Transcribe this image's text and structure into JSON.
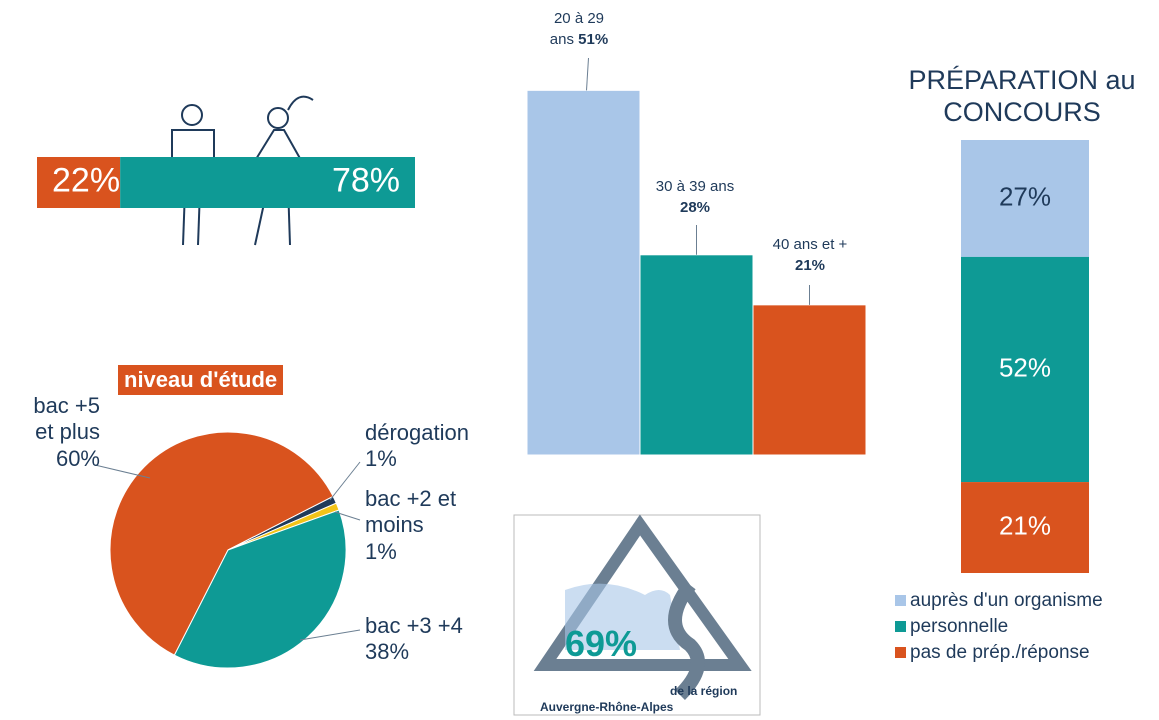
{
  "chart_data": [
    {
      "type": "stacked-bar-h",
      "values": [
        22,
        78
      ],
      "value_labels": [
        "22%",
        "78%"
      ],
      "colors": [
        "#d9531e",
        "#0e9a95"
      ]
    },
    {
      "type": "bar",
      "categories": [
        "20 à 29 ans",
        "30 à 39 ans",
        "40 ans et +"
      ],
      "values": [
        51,
        28,
        21
      ],
      "value_labels": [
        "51%",
        "28%",
        "21%"
      ],
      "colors": [
        "#a9c6e8",
        "#0e9a95",
        "#d9531e"
      ]
    },
    {
      "type": "stacked-bar",
      "title": "PRÉPARATION au CONCOURS",
      "series": [
        {
          "name": "auprès d'un organisme",
          "color": "#a9c6e8",
          "values": [
            27
          ],
          "value_labels": [
            "27%"
          ]
        },
        {
          "name": "personnelle",
          "color": "#0e9a95",
          "values": [
            52
          ],
          "value_labels": [
            "52%"
          ]
        },
        {
          "name": "pas de prép./réponse",
          "color": "#d9531e",
          "values": [
            21
          ],
          "value_labels": [
            "21%"
          ]
        }
      ]
    },
    {
      "type": "pie",
      "title": "niveau d'étude",
      "categories": [
        "bac +5 et plus",
        "dérogation",
        "bac +2 et moins",
        "bac +3 +4"
      ],
      "values": [
        60,
        1,
        1,
        38
      ],
      "value_labels": [
        "60%",
        "1%",
        "1%",
        "38%"
      ],
      "colors": [
        "#d9531e",
        "#1f3a5a",
        "#f2c318",
        "#0e9a95"
      ]
    }
  ],
  "badge": {
    "value_label": "69%",
    "caption": "de la région",
    "region": "Auvergne-Rhône-Alpes"
  }
}
